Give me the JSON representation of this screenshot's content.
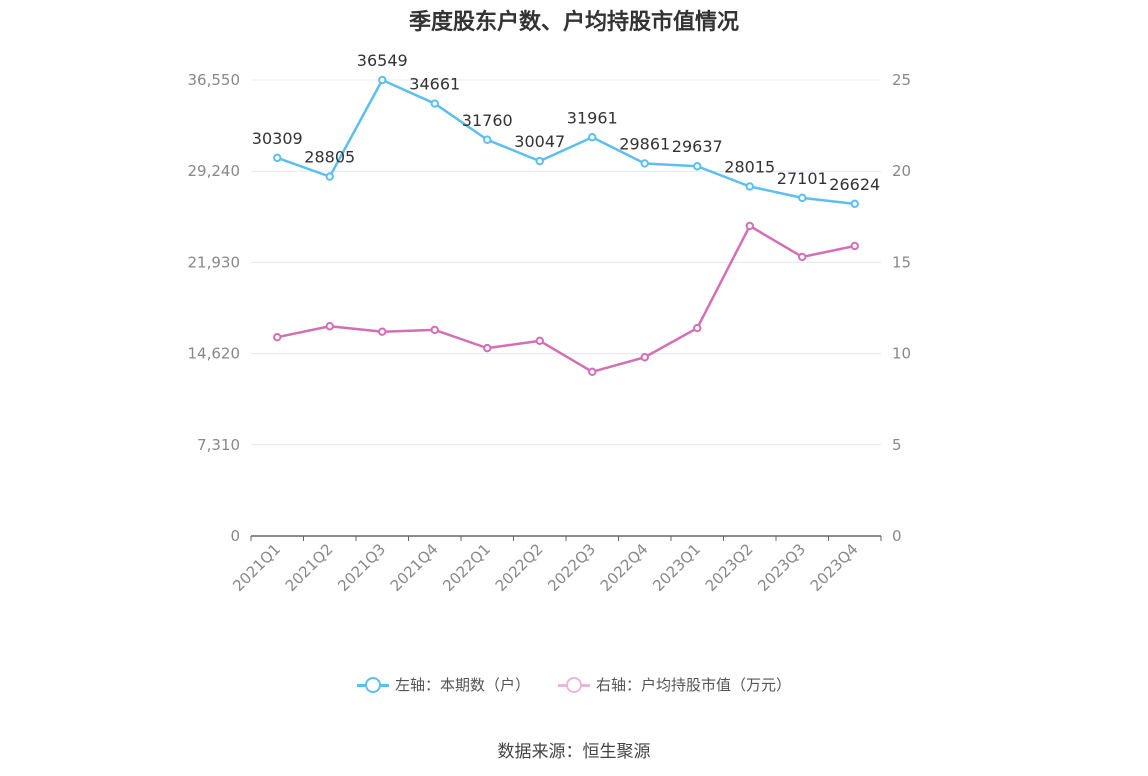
{
  "chart_data": {
    "type": "line",
    "title": "季度股东户数、户均持股市值情况",
    "categories": [
      "2021Q1",
      "2021Q2",
      "2021Q3",
      "2021Q4",
      "2022Q1",
      "2022Q2",
      "2022Q3",
      "2022Q4",
      "2023Q1",
      "2023Q2",
      "2023Q3",
      "2023Q4"
    ],
    "left_axis": {
      "ticks": [
        "0",
        "7,310",
        "14,620",
        "21,930",
        "29,240",
        "36,550"
      ],
      "ylim": [
        0,
        36550
      ]
    },
    "right_axis": {
      "ticks": [
        "0",
        "5",
        "10",
        "15",
        "20",
        "25"
      ],
      "ylim": [
        0,
        25
      ]
    },
    "series": [
      {
        "name": "左轴：本期数（户）",
        "axis": "left",
        "color": "#5bbfef",
        "values": [
          30309,
          28805,
          36549,
          34661,
          31760,
          30047,
          31961,
          29861,
          29637,
          28015,
          27101,
          26624
        ],
        "labels": [
          "30309",
          "28805",
          "36549",
          "34661",
          "31760",
          "30047",
          "31961",
          "29861",
          "29637",
          "28015",
          "27101",
          "26624"
        ]
      },
      {
        "name": "右轴：户均持股市值（万元）",
        "axis": "right",
        "color": "#d36fb4",
        "values": [
          10.9,
          11.5,
          11.2,
          11.3,
          10.3,
          10.7,
          9.0,
          9.8,
          11.4,
          17.0,
          15.3,
          15.9
        ]
      }
    ],
    "grid": true,
    "legend_position": "bottom"
  },
  "source": "数据来源：恒生聚源"
}
